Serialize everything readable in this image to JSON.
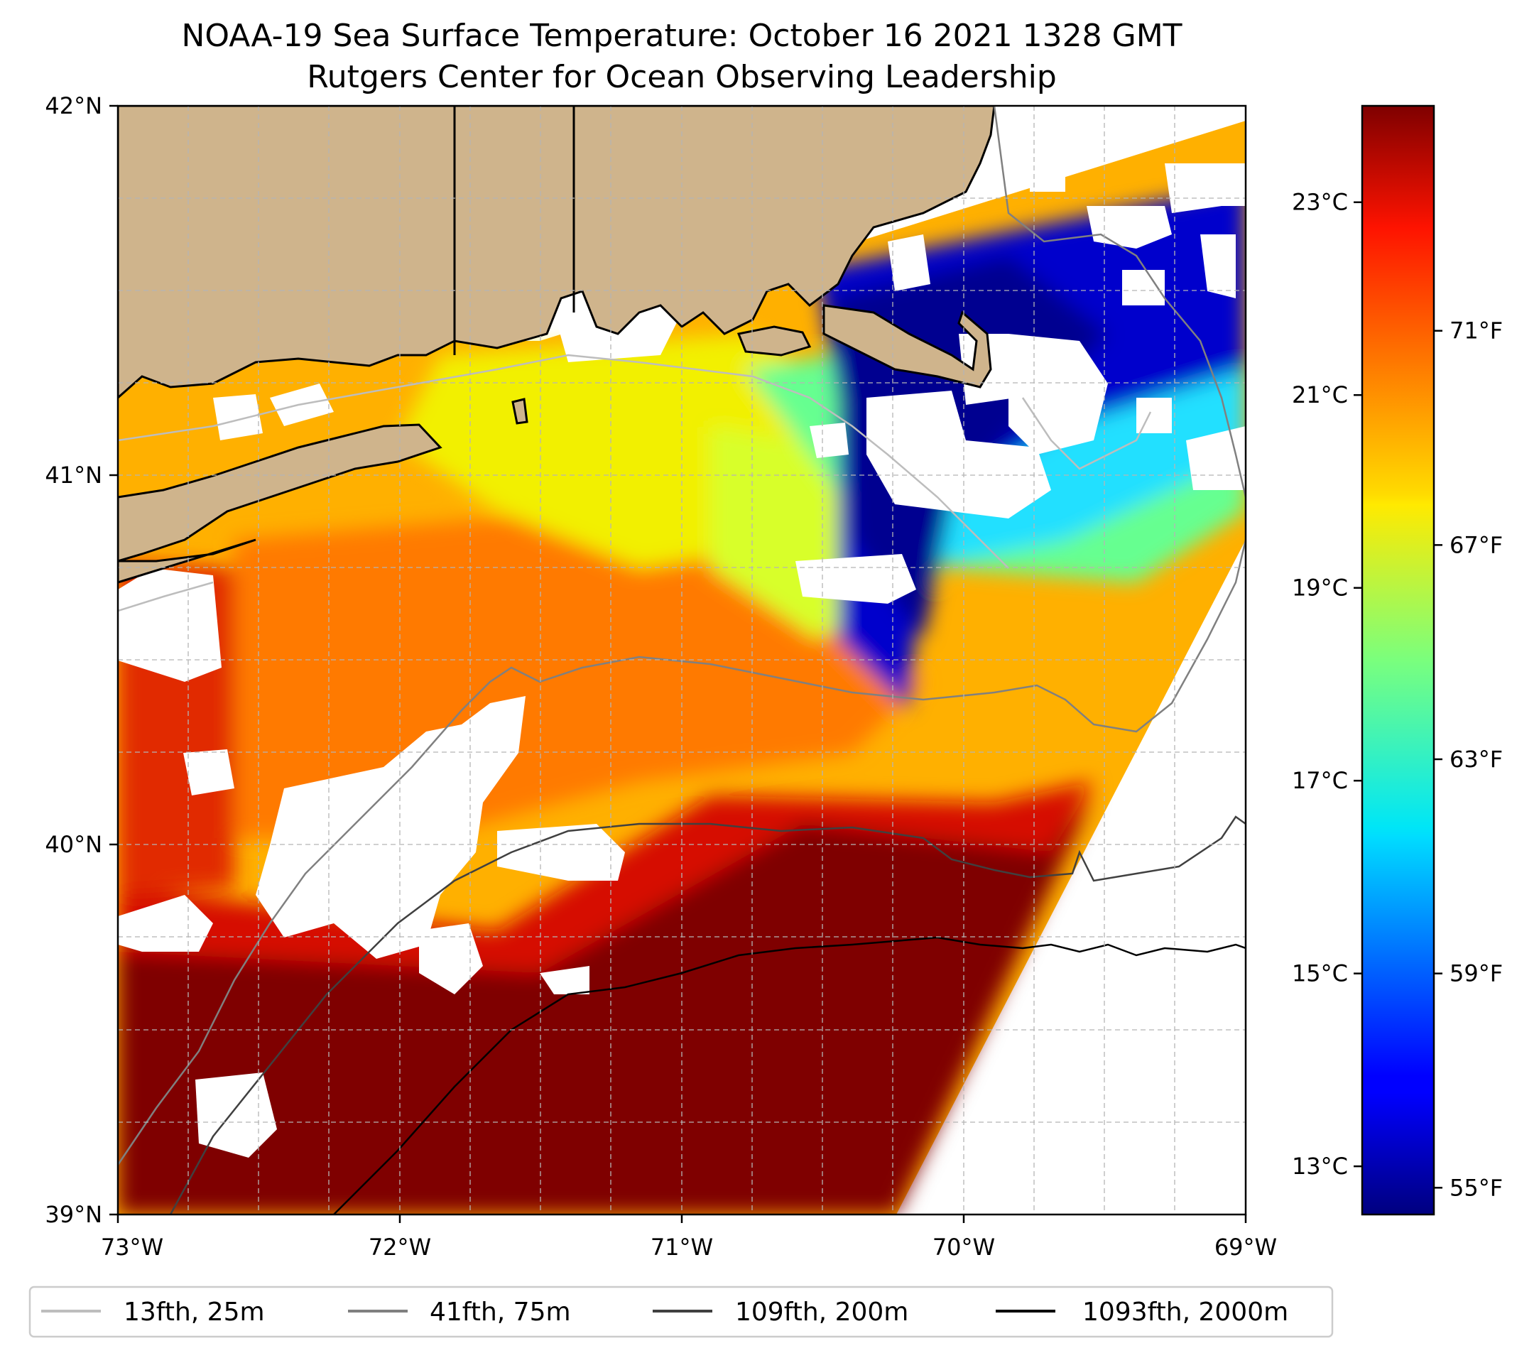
{
  "title": "NOAA-19 Sea Surface Temperature: October 16 2021 1328 GMT",
  "subtitle": "Rutgers Center for Ocean Observing Leadership",
  "map": {
    "lon_range": [
      -73,
      -69
    ],
    "lat_range": [
      39,
      42
    ],
    "grid": true,
    "land_color": "#cfb48c",
    "x_ticks": [
      "73°W",
      "72°W",
      "71°W",
      "70°W",
      "69°W"
    ],
    "y_ticks": [
      "42°N",
      "41°N",
      "40°N",
      "39°N"
    ]
  },
  "colorbar": {
    "colormap": "jet",
    "range_c": [
      12.5,
      24.0
    ],
    "celsius_ticks": [
      "23°C",
      "21°C",
      "19°C",
      "17°C",
      "15°C",
      "13°C"
    ],
    "fahrenheit_ticks": [
      "71°F",
      "67°F",
      "63°F",
      "59°F",
      "55°F"
    ],
    "celsius_values": [
      23,
      21,
      19,
      17,
      15,
      13
    ],
    "fahrenheit_values": [
      71,
      67,
      63,
      59,
      55
    ]
  },
  "legend": {
    "placement": "bottom",
    "items": [
      {
        "label": "13fth, 25m",
        "color": "#bdbdbd"
      },
      {
        "label": "41fth, 75m",
        "color": "#808080"
      },
      {
        "label": "109fth, 200m",
        "color": "#404040"
      },
      {
        "label": "1093fth, 2000m",
        "color": "#000000"
      }
    ]
  }
}
